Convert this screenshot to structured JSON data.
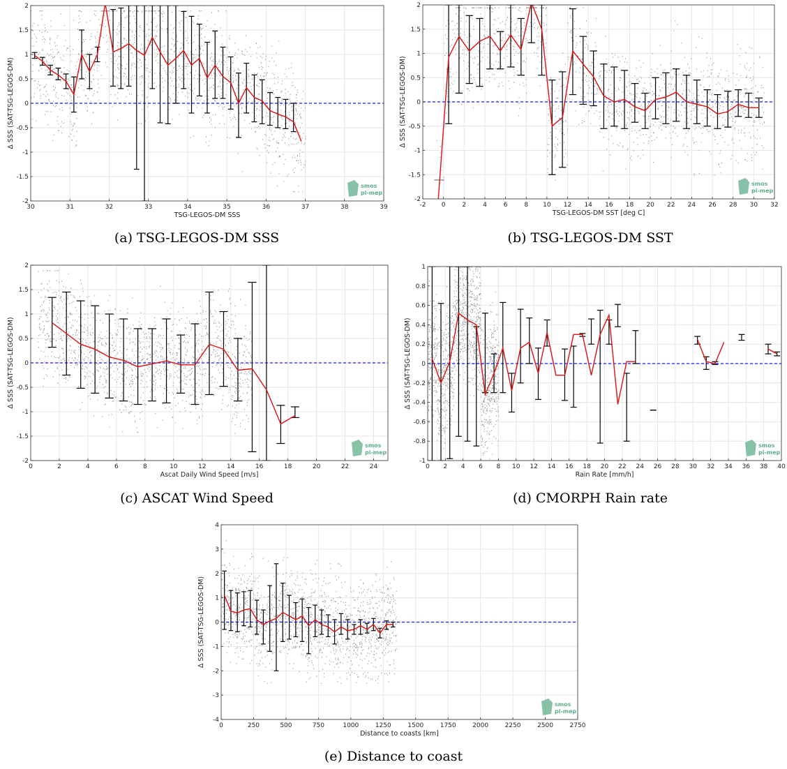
{
  "colors": {
    "mean_line": "#e01010",
    "zero_line": "#1a1aff",
    "errorbar": "#000000",
    "scatter": "#9a9a9a",
    "grid": "#e6e6e6",
    "logo": "#5fae8a"
  },
  "logo": {
    "line1": "smos",
    "line2": "pi-mep"
  },
  "chart_data": [
    {
      "type": "scatter",
      "caption": "(a) TSG-LEGOS-DM SSS",
      "xlabel": "TSG-LEGOS-DM SSS",
      "ylabel": "Δ SSS (SAT-TSG-LEGOS-DM)",
      "xlim": [
        30,
        39
      ],
      "ylim": [
        -2,
        2
      ],
      "xticks": [
        30,
        31,
        32,
        33,
        34,
        35,
        36,
        37,
        38,
        39
      ],
      "yticks": [
        -2,
        -1.5,
        -1,
        -0.5,
        0,
        0.5,
        1,
        1.5,
        2
      ],
      "ytick_labels": [
        "-2",
        "-1.5",
        "-1",
        "-0.5",
        "0",
        "0.5",
        "1",
        "1.5",
        "2"
      ],
      "grid": true,
      "zero_line": 0,
      "mean_x": [
        30.1,
        30.3,
        30.5,
        30.7,
        30.9,
        31.1,
        31.3,
        31.5,
        31.7,
        31.9,
        32.1,
        32.3,
        32.5,
        32.7,
        32.9,
        33.1,
        33.3,
        33.5,
        33.7,
        33.9,
        34.1,
        34.3,
        34.5,
        34.7,
        34.9,
        35.1,
        35.3,
        35.5,
        35.7,
        35.9,
        36.1,
        36.3,
        36.5,
        36.7,
        36.9
      ],
      "mean_y": [
        0.98,
        0.86,
        0.68,
        0.58,
        0.45,
        0.18,
        1.0,
        0.65,
        1.0,
        2.05,
        1.05,
        1.12,
        1.22,
        1.08,
        0.98,
        1.35,
        1.05,
        0.78,
        0.92,
        1.08,
        0.78,
        0.92,
        0.52,
        0.78,
        0.55,
        0.42,
        0.0,
        0.32,
        0.12,
        0.05,
        -0.15,
        -0.22,
        -0.28,
        -0.38,
        -0.78
      ],
      "errorbars": [
        [
          30.1,
          0.92,
          1.04
        ],
        [
          30.3,
          0.78,
          0.94
        ],
        [
          30.5,
          0.58,
          0.78
        ],
        [
          30.7,
          0.48,
          0.72
        ],
        [
          30.9,
          0.3,
          0.6
        ],
        [
          31.1,
          -0.18,
          0.54
        ],
        [
          31.3,
          0.5,
          1.5
        ],
        [
          31.5,
          0.3,
          1.0
        ],
        [
          31.7,
          0.85,
          1.15
        ],
        [
          32.1,
          0.35,
          1.92
        ],
        [
          32.3,
          0.3,
          1.95
        ],
        [
          32.5,
          0.35,
          2.0
        ],
        [
          32.7,
          -1.35,
          2.0
        ],
        [
          32.9,
          -2.0,
          2.0
        ],
        [
          33.1,
          0.3,
          2.0
        ],
        [
          33.3,
          -0.4,
          2.0
        ],
        [
          33.5,
          -0.42,
          2.0
        ],
        [
          33.7,
          0.0,
          2.0
        ],
        [
          33.9,
          0.3,
          1.88
        ],
        [
          34.1,
          -0.2,
          1.78
        ],
        [
          34.3,
          0.15,
          1.62
        ],
        [
          34.5,
          -0.2,
          1.25
        ],
        [
          34.7,
          0.1,
          1.48
        ],
        [
          34.9,
          0.1,
          1.15
        ],
        [
          35.1,
          -0.12,
          0.95
        ],
        [
          35.3,
          -0.7,
          0.62
        ],
        [
          35.5,
          -0.2,
          0.82
        ],
        [
          35.7,
          -0.38,
          0.58
        ],
        [
          35.9,
          -0.42,
          0.48
        ],
        [
          36.1,
          -0.45,
          0.22
        ],
        [
          36.3,
          -0.5,
          0.12
        ],
        [
          36.5,
          -0.52,
          0.08
        ],
        [
          36.7,
          -0.58,
          0.0
        ]
      ],
      "scatter_band": {
        "x": [
          30,
          37
        ],
        "ymin": -1.8,
        "ymax": 1.9
      }
    },
    {
      "type": "scatter",
      "caption": "(b) TSG-LEGOS-DM SST",
      "xlabel": "TSG-LEGOS-DM SST [deg C]",
      "ylabel": "Δ SSS (SAT-TSG-LEGOS-DM)",
      "xlim": [
        -2,
        32
      ],
      "ylim": [
        -2,
        2
      ],
      "xticks": [
        -2,
        0,
        2,
        4,
        6,
        8,
        10,
        12,
        14,
        16,
        18,
        20,
        22,
        24,
        26,
        28,
        30,
        32
      ],
      "yticks": [
        -2,
        -1.5,
        -1,
        -0.5,
        0,
        0.5,
        1,
        1.5,
        2
      ],
      "ytick_labels": [
        "-2",
        "-1.5",
        "-1",
        "-0.5",
        "0",
        "0.5",
        "1",
        "1.5",
        "2"
      ],
      "grid": true,
      "zero_line": 0,
      "mean_x": [
        -0.5,
        0.5,
        1.5,
        2.5,
        3.5,
        4.5,
        5.5,
        6.5,
        7.5,
        8.5,
        9.5,
        10.5,
        11.5,
        12.5,
        13.5,
        14.5,
        15.5,
        16.5,
        17.5,
        18.5,
        19.5,
        20.5,
        21.5,
        22.5,
        23.5,
        24.5,
        25.5,
        26.5,
        27.5,
        28.5,
        29.5,
        30.5
      ],
      "mean_y": [
        -2.0,
        0.92,
        1.35,
        1.05,
        1.25,
        1.35,
        1.05,
        1.38,
        1.08,
        2.05,
        1.5,
        -0.5,
        -0.32,
        1.05,
        0.78,
        0.52,
        0.12,
        0.0,
        0.05,
        -0.1,
        -0.18,
        0.05,
        0.1,
        0.2,
        0.0,
        -0.05,
        -0.1,
        -0.25,
        -0.2,
        -0.05,
        -0.12,
        -0.12
      ],
      "errorbars": [
        [
          0.5,
          -0.45,
          2.0
        ],
        [
          1.5,
          0.18,
          2.0
        ],
        [
          2.5,
          0.38,
          1.78
        ],
        [
          3.5,
          0.32,
          1.72
        ],
        [
          4.5,
          0.68,
          2.0
        ],
        [
          5.5,
          0.68,
          1.45
        ],
        [
          6.5,
          0.72,
          2.0
        ],
        [
          7.5,
          0.55,
          1.72
        ],
        [
          8.5,
          1.22,
          2.0
        ],
        [
          9.5,
          0.55,
          2.0
        ],
        [
          10.5,
          -1.5,
          0.45
        ],
        [
          11.5,
          -1.35,
          0.62
        ],
        [
          12.5,
          0.15,
          1.92
        ],
        [
          13.5,
          -0.05,
          1.35
        ],
        [
          14.5,
          -0.08,
          1.05
        ],
        [
          15.5,
          -0.55,
          0.78
        ],
        [
          16.5,
          -0.5,
          0.72
        ],
        [
          17.5,
          -0.55,
          0.65
        ],
        [
          18.5,
          -0.42,
          0.38
        ],
        [
          19.5,
          -0.55,
          0.18
        ],
        [
          20.5,
          -0.35,
          0.5
        ],
        [
          21.5,
          -0.45,
          0.6
        ],
        [
          22.5,
          -0.4,
          0.68
        ],
        [
          23.5,
          -0.55,
          0.55
        ],
        [
          24.5,
          -0.45,
          0.45
        ],
        [
          25.5,
          -0.5,
          0.25
        ],
        [
          26.5,
          -0.55,
          0.15
        ],
        [
          27.5,
          -0.52,
          0.22
        ],
        [
          28.5,
          -0.3,
          0.25
        ],
        [
          29.5,
          -0.32,
          0.18
        ],
        [
          30.5,
          -0.32,
          0.08
        ]
      ],
      "scatter_band": {
        "x": [
          -1,
          31
        ],
        "ymin": -1.6,
        "ymax": 1.95
      }
    },
    {
      "type": "scatter",
      "caption": "(c) ASCAT Wind Speed",
      "xlabel": "Ascat Daily Wind Speed [m/s]",
      "ylabel": "Δ SSS (SAT-TSG-LEGOS-DM)",
      "xlim": [
        0,
        25
      ],
      "ylim": [
        -2,
        2
      ],
      "xticks": [
        0,
        2,
        4,
        6,
        8,
        10,
        12,
        14,
        16,
        18,
        20,
        22,
        24
      ],
      "yticks": [
        -2,
        -1.5,
        -1,
        -0.5,
        0,
        0.5,
        1,
        1.5,
        2
      ],
      "ytick_labels": [
        "-2",
        "-1.5",
        "-1",
        "-0.5",
        "0",
        "0.5",
        "1",
        "1.5",
        "2"
      ],
      "grid": true,
      "zero_line": 0,
      "mean_x": [
        1.5,
        2.5,
        3.5,
        4.5,
        5.5,
        6.5,
        7.5,
        8.5,
        9.5,
        10.5,
        11.5,
        12.5,
        13.5,
        14.5,
        15.5,
        16.5,
        17.5,
        18.5
      ],
      "mean_y": [
        0.82,
        0.6,
        0.38,
        0.28,
        0.12,
        0.05,
        -0.08,
        -0.02,
        0.04,
        -0.04,
        -0.04,
        0.38,
        0.28,
        -0.15,
        -0.12,
        -0.55,
        -1.25,
        -1.08
      ],
      "errorbars": [
        [
          1.5,
          0.32,
          1.34
        ],
        [
          2.5,
          -0.25,
          1.45
        ],
        [
          3.5,
          -0.52,
          1.27
        ],
        [
          4.5,
          -0.62,
          1.17
        ],
        [
          5.5,
          -0.72,
          1.0
        ],
        [
          6.5,
          -0.78,
          0.9
        ],
        [
          7.5,
          -0.85,
          0.7
        ],
        [
          8.5,
          -0.78,
          0.7
        ],
        [
          9.5,
          -0.82,
          0.9
        ],
        [
          10.5,
          -0.62,
          0.57
        ],
        [
          11.5,
          -0.85,
          0.8
        ],
        [
          12.5,
          -0.65,
          1.45
        ],
        [
          13.5,
          -0.48,
          1.05
        ],
        [
          14.5,
          -0.78,
          0.5
        ],
        [
          15.5,
          -1.82,
          1.65
        ],
        [
          16.5,
          -2.0,
          2.0
        ],
        [
          17.5,
          -1.65,
          -0.87
        ],
        [
          18.5,
          -1.12,
          -0.9
        ]
      ],
      "scatter_band": {
        "x": [
          0.5,
          15.5
        ],
        "ymin": -1.6,
        "ymax": 1.9
      }
    },
    {
      "type": "scatter",
      "caption": "(d) CMORPH Rain rate",
      "xlabel": "Rain Rate [mm/h]",
      "ylabel": "Δ SSS (SAT-TSG-LEGOS-DM)",
      "xlim": [
        0,
        40
      ],
      "ylim": [
        -1,
        1
      ],
      "xticks": [
        0,
        2,
        4,
        6,
        8,
        10,
        12,
        14,
        16,
        18,
        20,
        22,
        24,
        26,
        28,
        30,
        32,
        34,
        36,
        38,
        40
      ],
      "yticks": [
        -1,
        -0.8,
        -0.6,
        -0.4,
        -0.2,
        0,
        0.2,
        0.4,
        0.6,
        0.8,
        1
      ],
      "ytick_labels": [
        "-1",
        "-0.8",
        "-0.6",
        "-0.4",
        "-0.2",
        "0",
        "0.2",
        "0.4",
        "0.6",
        "0.8",
        "1"
      ],
      "grid": true,
      "zero_line": 0,
      "mean_x": [
        0.5,
        1.5,
        2.5,
        3.5,
        4.5,
        5.5,
        6.5,
        7.5,
        8.5,
        9.5,
        10.5,
        11.5,
        12.5,
        13.5,
        14.5,
        15.5,
        16.5,
        17.5,
        18.5,
        19.5,
        20.5,
        21.5,
        22.5,
        23.5
      ],
      "mean_y": [
        0.05,
        -0.2,
        0.02,
        0.52,
        0.45,
        0.4,
        -0.32,
        -0.1,
        0.16,
        -0.28,
        0.16,
        0.22,
        -0.1,
        0.32,
        -0.12,
        -0.12,
        0.3,
        0.3,
        -0.12,
        0.3,
        0.5,
        -0.42,
        0.02,
        0.02
      ],
      "extra_segments": [
        {
          "x": [
            30.5,
            31.5,
            32.5,
            33.5
          ],
          "y": [
            0.25,
            0.02,
            0.0,
            0.22
          ]
        },
        {
          "x": [
            38.5,
            39.5
          ],
          "y": [
            0.15,
            0.1
          ]
        }
      ],
      "errorbars": [
        [
          0.5,
          -1.0,
          1.0
        ],
        [
          1.5,
          -1.0,
          0.62
        ],
        [
          2.5,
          -0.98,
          1.0
        ],
        [
          3.5,
          -0.75,
          1.0
        ],
        [
          4.5,
          -0.8,
          1.0
        ],
        [
          5.5,
          -0.85,
          0.38
        ],
        [
          6.5,
          -0.3,
          0.52
        ],
        [
          7.5,
          -0.3,
          0.1
        ],
        [
          8.5,
          -0.3,
          0.63
        ],
        [
          9.5,
          -0.5,
          -0.1
        ],
        [
          10.5,
          -0.2,
          0.56
        ],
        [
          11.5,
          0.0,
          0.47
        ],
        [
          12.5,
          -0.37,
          0.16
        ],
        [
          13.5,
          0.18,
          0.45
        ],
        [
          15.5,
          -0.38,
          0.15
        ],
        [
          16.5,
          -0.45,
          0.18
        ],
        [
          17.5,
          0.28,
          0.31
        ],
        [
          18.5,
          0.2,
          0.46
        ],
        [
          19.5,
          -0.82,
          0.55
        ],
        [
          20.5,
          0.2,
          0.45
        ],
        [
          21.5,
          0.38,
          0.61
        ],
        [
          22.5,
          -0.8,
          -0.1
        ],
        [
          23.5,
          0.0,
          0.34
        ],
        [
          25.5,
          -0.48,
          -0.48
        ],
        [
          30.5,
          0.2,
          0.28
        ],
        [
          31.5,
          -0.06,
          0.07
        ],
        [
          32.5,
          -0.01,
          0.02
        ],
        [
          35.5,
          0.24,
          0.3
        ],
        [
          38.5,
          0.1,
          0.2
        ],
        [
          39.5,
          0.08,
          0.12
        ]
      ],
      "scatter_band": {
        "x": [
          0,
          8
        ],
        "ymin": -1.0,
        "ymax": 1.0
      }
    },
    {
      "type": "scatter",
      "caption": "(e) Distance to coast",
      "xlabel": "Distance to coasts [km]",
      "ylabel": "Δ SSS (SAT-TSG-LEGOS-DM)",
      "xlim": [
        0,
        2750
      ],
      "ylim": [
        -4,
        4
      ],
      "xticks": [
        0,
        250,
        500,
        750,
        1000,
        1250,
        1500,
        1750,
        2000,
        2250,
        2500,
        2750
      ],
      "yticks": [
        -4,
        -3,
        -2,
        -1,
        0,
        1,
        2,
        3,
        4
      ],
      "ytick_labels": [
        "-4",
        "-3",
        "-2",
        "-1",
        "0",
        "1",
        "2",
        "3",
        "4"
      ],
      "grid": true,
      "zero_line": 0,
      "mean_x": [
        25,
        75,
        125,
        175,
        225,
        275,
        325,
        375,
        425,
        475,
        525,
        575,
        625,
        675,
        725,
        775,
        825,
        875,
        925,
        975,
        1025,
        1075,
        1125,
        1175,
        1225,
        1275,
        1325
      ],
      "mean_y": [
        1.1,
        0.45,
        0.38,
        0.5,
        0.55,
        0.1,
        -0.1,
        0.05,
        0.15,
        0.4,
        0.25,
        0.1,
        0.25,
        -0.15,
        0.1,
        -0.1,
        -0.2,
        -0.4,
        -0.2,
        -0.35,
        -0.3,
        -0.15,
        -0.3,
        -0.1,
        -0.45,
        -0.1,
        -0.1
      ],
      "errorbars": [
        [
          25,
          -0.3,
          2.1
        ],
        [
          75,
          -0.35,
          1.3
        ],
        [
          125,
          -0.4,
          1.2
        ],
        [
          175,
          -0.15,
          1.25
        ],
        [
          225,
          -0.2,
          1.3
        ],
        [
          275,
          -0.5,
          0.9
        ],
        [
          325,
          -0.9,
          0.5
        ],
        [
          375,
          -1.2,
          1.5
        ],
        [
          425,
          -2.0,
          2.4
        ],
        [
          475,
          -0.8,
          1.6
        ],
        [
          525,
          -0.7,
          1.1
        ],
        [
          575,
          -0.6,
          0.8
        ],
        [
          625,
          -0.8,
          0.95
        ],
        [
          675,
          -1.3,
          0.6
        ],
        [
          725,
          -0.6,
          0.7
        ],
        [
          775,
          -0.5,
          0.5
        ],
        [
          825,
          -0.6,
          0.3
        ],
        [
          875,
          -0.9,
          0.1
        ],
        [
          925,
          -0.5,
          0.35
        ],
        [
          975,
          -0.7,
          0.1
        ],
        [
          1025,
          -0.5,
          -0.1
        ],
        [
          1075,
          -0.5,
          0.1
        ],
        [
          1125,
          -0.45,
          -0.05
        ],
        [
          1175,
          -0.35,
          0.15
        ],
        [
          1225,
          -0.65,
          -0.25
        ],
        [
          1275,
          -0.3,
          0.05
        ],
        [
          1325,
          -0.2,
          0.0
        ]
      ],
      "scatter_band": {
        "x": [
          0,
          1350
        ],
        "ymin": -2.5,
        "ymax": 3.8
      }
    }
  ]
}
